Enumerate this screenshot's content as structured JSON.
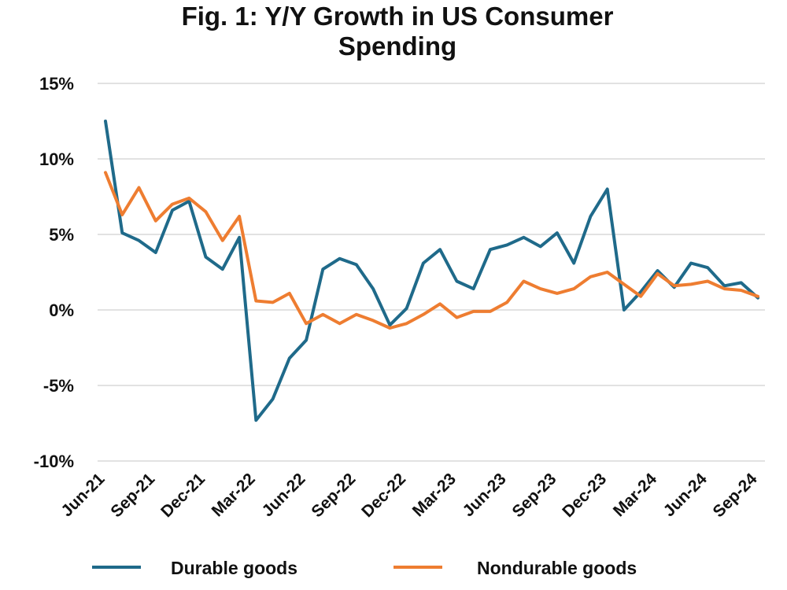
{
  "chart_data": {
    "type": "line",
    "title": "Fig. 1: Y/Y Growth in US Consumer Spending",
    "title_lines": [
      "Fig. 1: Y/Y Growth in US Consumer",
      "Spending"
    ],
    "xlabel": "",
    "ylabel": "",
    "ylim": [
      -10,
      15
    ],
    "y_ticks": [
      15,
      10,
      5,
      0,
      -5,
      -10
    ],
    "y_tick_labels": [
      "15%",
      "10%",
      "5%",
      "0%",
      "-5%",
      "-10%"
    ],
    "x_tick_labels": [
      "Jun-21",
      "Sep-21",
      "Dec-21",
      "Mar-22",
      "Jun-22",
      "Sep-22",
      "Dec-22",
      "Mar-23",
      "Jun-23",
      "Sep-23",
      "Dec-23",
      "Mar-24",
      "Jun-24",
      "Sep-24"
    ],
    "x": [
      "Jun-21",
      "Jul-21",
      "Aug-21",
      "Sep-21",
      "Oct-21",
      "Nov-21",
      "Dec-21",
      "Jan-22",
      "Feb-22",
      "Mar-22",
      "Apr-22",
      "May-22",
      "Jun-22",
      "Jul-22",
      "Aug-22",
      "Sep-22",
      "Oct-22",
      "Nov-22",
      "Dec-22",
      "Jan-23",
      "Feb-23",
      "Mar-23",
      "Apr-23",
      "May-23",
      "Jun-23",
      "Jul-23",
      "Aug-23",
      "Sep-23",
      "Oct-23",
      "Nov-23",
      "Dec-23",
      "Jan-24",
      "Feb-24",
      "Mar-24",
      "Apr-24",
      "May-24",
      "Jun-24",
      "Jul-24",
      "Aug-24",
      "Sep-24"
    ],
    "grid": true,
    "legend_position": "bottom",
    "series": [
      {
        "name": "Durable goods",
        "color": "#1f6a8a",
        "values": [
          12.5,
          5.1,
          4.6,
          3.8,
          6.6,
          7.2,
          3.5,
          2.7,
          4.8,
          -7.3,
          -5.9,
          -3.2,
          -2.0,
          2.7,
          3.4,
          3.0,
          1.4,
          -1.0,
          0.1,
          3.1,
          4.0,
          1.9,
          1.4,
          4.0,
          4.3,
          4.8,
          4.2,
          5.1,
          3.1,
          6.2,
          8.0,
          0.0,
          1.2,
          2.6,
          1.5,
          3.1,
          2.8,
          1.6,
          1.8,
          0.8
        ]
      },
      {
        "name": "Nondurable goods",
        "color": "#ee7d31",
        "values": [
          9.1,
          6.3,
          8.1,
          5.9,
          7.0,
          7.4,
          6.5,
          4.6,
          6.2,
          0.6,
          0.5,
          1.1,
          -0.9,
          -0.3,
          -0.9,
          -0.3,
          -0.7,
          -1.2,
          -0.9,
          -0.3,
          0.4,
          -0.5,
          -0.1,
          -0.1,
          0.5,
          1.9,
          1.4,
          1.1,
          1.4,
          2.2,
          2.5,
          1.7,
          0.9,
          2.4,
          1.6,
          1.7,
          1.9,
          1.4,
          1.3,
          0.9
        ]
      }
    ]
  }
}
